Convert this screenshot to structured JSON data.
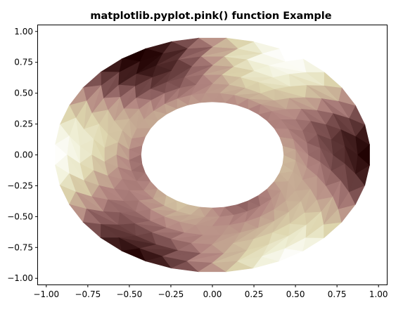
{
  "chart_data": {
    "type": "heatmap",
    "subtype": "tripcolor-annulus",
    "title": "matplotlib.pyplot.pink() function Example",
    "colormap": "pink",
    "xlim": [
      -1.05,
      1.05
    ],
    "ylim": [
      -1.05,
      1.05
    ],
    "x_ticks": [
      "−1.00",
      "−0.75",
      "−0.50",
      "−0.25",
      "0.00",
      "0.25",
      "0.50",
      "0.75",
      "1.00"
    ],
    "y_ticks": [
      "1.00",
      "0.75",
      "0.50",
      "0.25",
      "0.00",
      "−0.25",
      "−0.50",
      "−0.75",
      "−1.00"
    ],
    "x_tick_values": [
      -1,
      -0.75,
      -0.5,
      -0.25,
      0,
      0.25,
      0.5,
      0.75,
      1
    ],
    "y_tick_values": [
      1,
      0.75,
      0.5,
      0.25,
      0,
      -0.25,
      -0.5,
      -0.75,
      -1
    ],
    "inner_radius": 0.43,
    "outer_radius": 0.95,
    "grid": false,
    "legend": "none"
  }
}
